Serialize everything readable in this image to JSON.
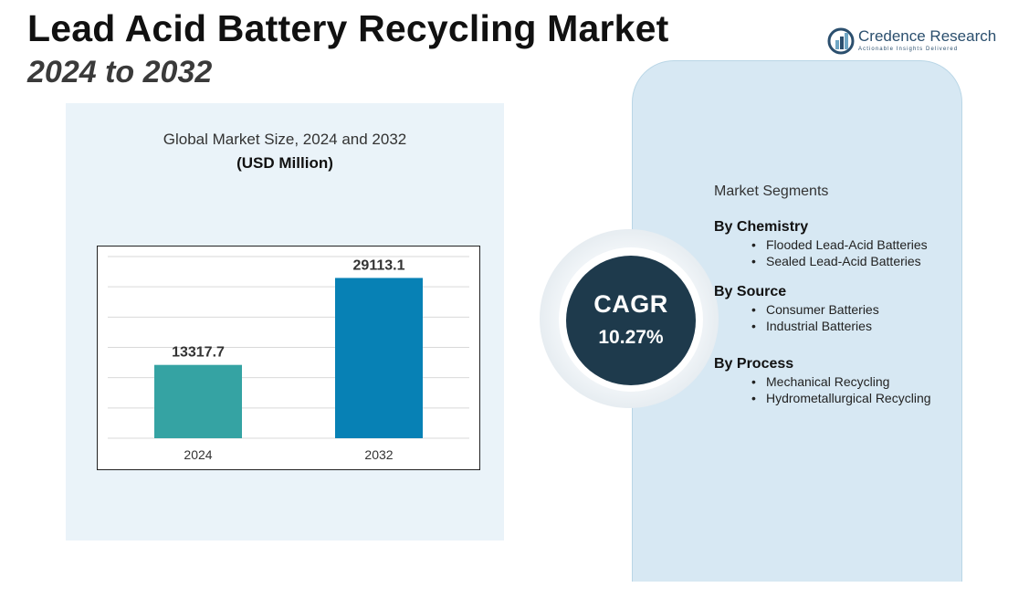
{
  "header": {
    "title": "Lead Acid Battery Recycling Market",
    "subtitle": "2024 to 2032"
  },
  "logo": {
    "name": "Credence Research",
    "tagline": "Actionable Insights Delivered",
    "icon": "bar-chart-logo-icon"
  },
  "chart_panel": {
    "title": "Global Market Size, 2024 and 2032",
    "unit": "(USD Million)"
  },
  "chart_data": {
    "type": "bar",
    "title": "Global Market Size, 2024 and 2032",
    "ylabel": "(USD Million)",
    "categories": [
      "2024",
      "2032"
    ],
    "values": [
      13317.7,
      29113.1
    ],
    "ylim": [
      0,
      33000
    ],
    "grid": true,
    "colors": [
      "#35a3a3",
      "#0781b5"
    ]
  },
  "cagr": {
    "label": "CAGR",
    "value": "10.27%"
  },
  "segments": {
    "heading": "Market Segments",
    "groups": [
      {
        "title": "By Chemistry",
        "items": [
          "Flooded Lead-Acid Batteries",
          "Sealed Lead-Acid Batteries"
        ]
      },
      {
        "title": "By Source",
        "items": [
          "Consumer Batteries",
          "Industrial Batteries"
        ]
      },
      {
        "title": "By Process",
        "items": [
          "Mechanical Recycling",
          "Hydrometallurgical Recycling"
        ]
      }
    ],
    "bullet": "•"
  },
  "colors": {
    "panel_bg": "#eaf3f9",
    "segment_bg": "#d7e8f3",
    "cagr_dark": "#1e3a4c",
    "brand": "#2b4f6e"
  }
}
